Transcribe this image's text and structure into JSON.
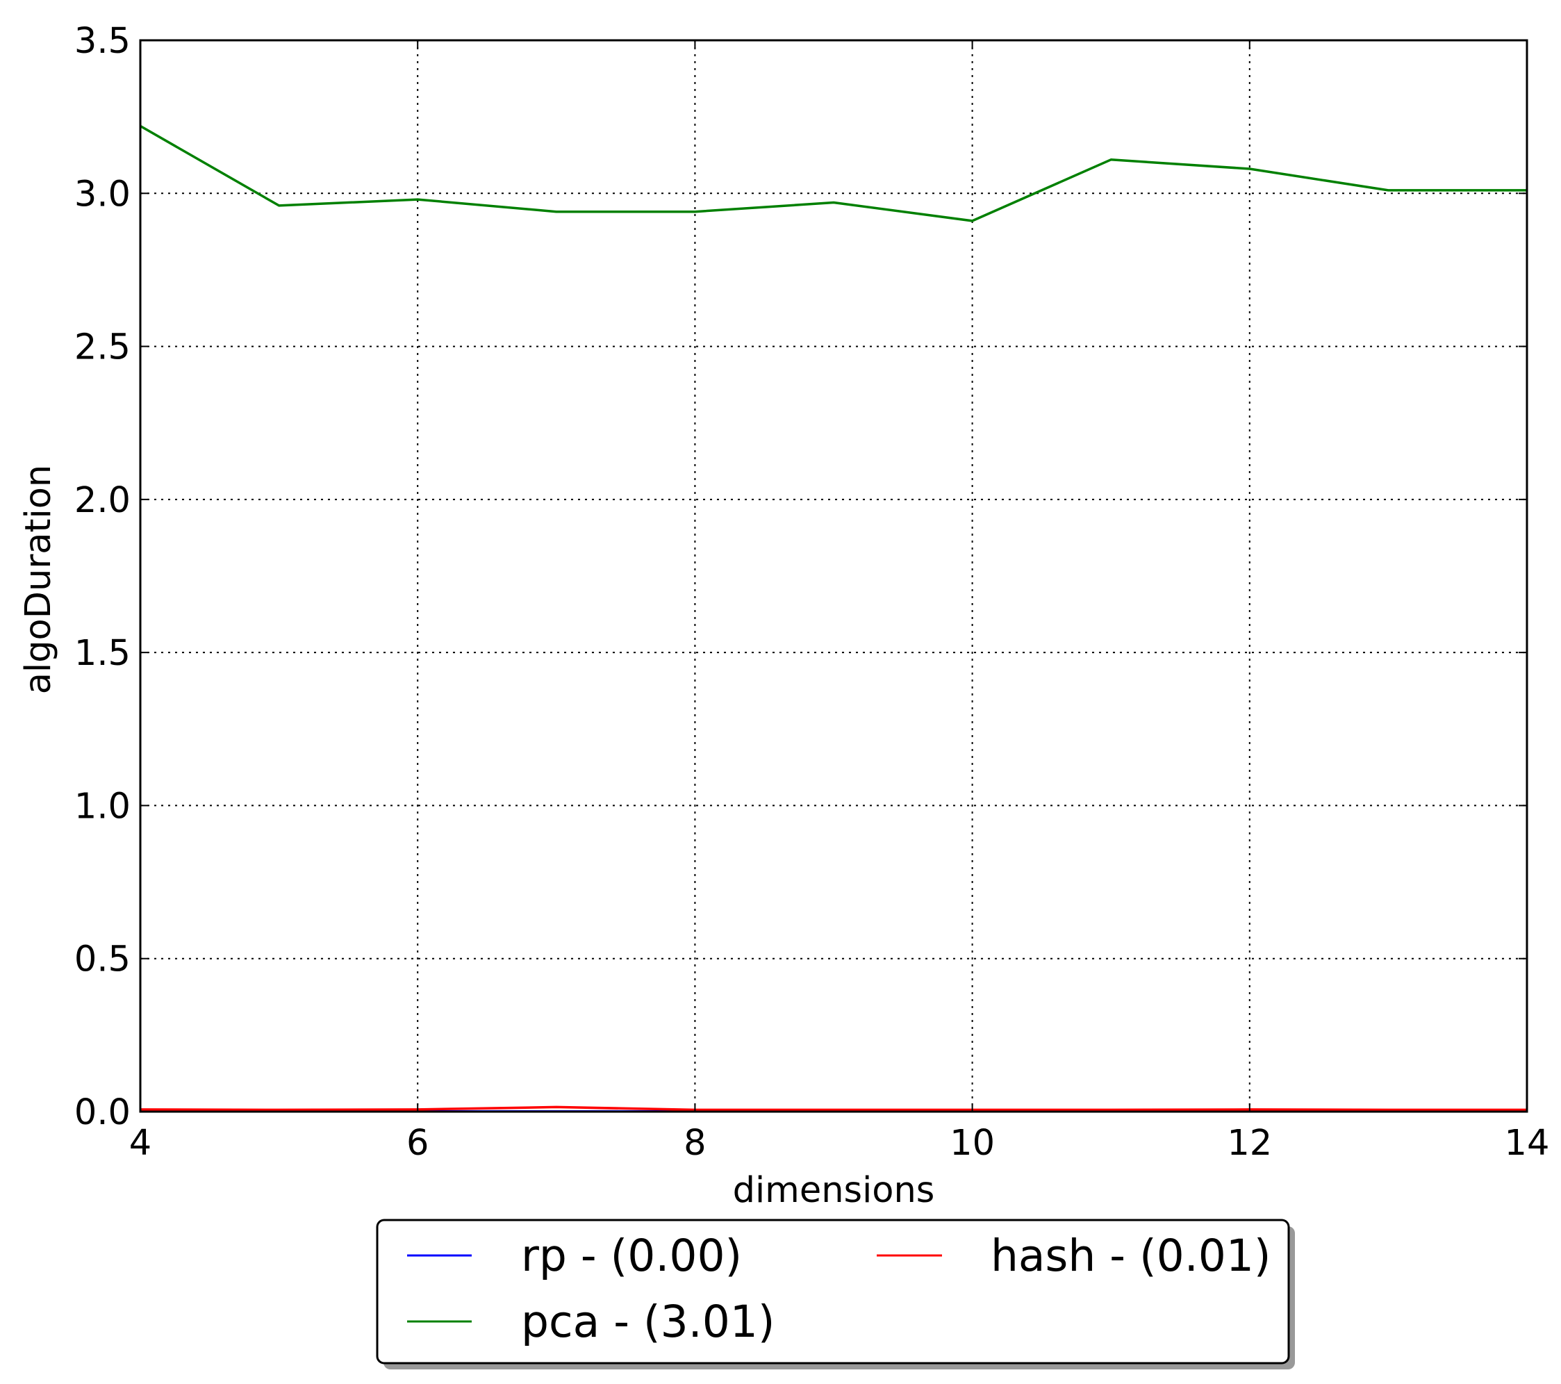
{
  "chart_data": {
    "type": "line",
    "title": "",
    "xlabel": "dimensions",
    "ylabel": "algoDuration",
    "xlim": [
      4,
      14
    ],
    "ylim": [
      0,
      3.5
    ],
    "x_ticks": [
      4,
      6,
      8,
      10,
      12,
      14
    ],
    "y_ticks": [
      0.0,
      0.5,
      1.0,
      1.5,
      2.0,
      2.5,
      3.0,
      3.5
    ],
    "x_tick_labels": [
      "4",
      "6",
      "8",
      "10",
      "12",
      "14"
    ],
    "y_tick_labels": [
      "0.0",
      "0.5",
      "1.0",
      "1.5",
      "2.0",
      "2.5",
      "3.0",
      "3.5"
    ],
    "grid": true,
    "legend_position": "below",
    "x": [
      4,
      5,
      6,
      7,
      8,
      9,
      10,
      11,
      12,
      13,
      14
    ],
    "series": [
      {
        "name": "rp - (0.00)",
        "color": "#0000ff",
        "values": [
          0.001,
          0.001,
          0.001,
          0.001,
          0.001,
          0.001,
          0.001,
          0.001,
          0.001,
          0.001,
          0.001
        ]
      },
      {
        "name": "hash - (0.01)",
        "color": "#ff0000",
        "values": [
          0.007,
          0.006,
          0.007,
          0.015,
          0.006,
          0.006,
          0.006,
          0.006,
          0.007,
          0.006,
          0.006
        ]
      },
      {
        "name": "pca - (3.01)",
        "color": "#008000",
        "values": [
          3.22,
          2.96,
          2.98,
          2.94,
          2.94,
          2.97,
          2.91,
          3.11,
          3.08,
          3.01,
          3.01
        ]
      }
    ]
  }
}
